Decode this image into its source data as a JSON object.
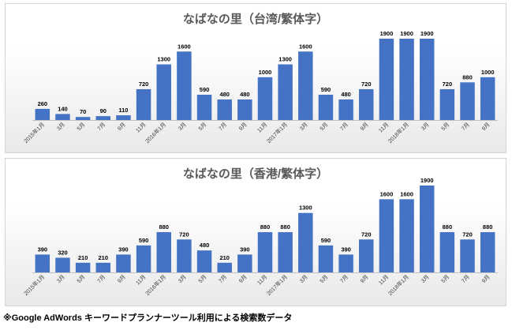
{
  "chart_data": [
    {
      "type": "bar",
      "title": "なばなの里（台湾/繁体字）",
      "categories": [
        "2015年1月",
        "3月",
        "5月",
        "7月",
        "9月",
        "11月",
        "2016年1月",
        "3月",
        "5月",
        "7月",
        "9月",
        "11月",
        "2017年1月",
        "3月",
        "5月",
        "7月",
        "9月",
        "11月",
        "2018年1月",
        "3月",
        "5月",
        "7月",
        "9月"
      ],
      "values": [
        260,
        140,
        70,
        90,
        110,
        720,
        1300,
        1600,
        590,
        480,
        480,
        1000,
        1300,
        1600,
        590,
        480,
        720,
        1900,
        1900,
        1900,
        720,
        880,
        1000
      ],
      "data_labels": true,
      "grid": false,
      "color": "#4472c4"
    },
    {
      "type": "bar",
      "title": "なばなの里（香港/繁体字）",
      "categories": [
        "2015年1月",
        "3月",
        "5月",
        "7月",
        "9月",
        "11月",
        "2016年1月",
        "3月",
        "5月",
        "7月",
        "9月",
        "11月",
        "2017年1月",
        "3月",
        "5月",
        "7月",
        "9月",
        "11月",
        "2018年1月",
        "3月",
        "5月",
        "7月",
        "9月"
      ],
      "values": [
        390,
        320,
        210,
        210,
        390,
        590,
        880,
        720,
        480,
        210,
        390,
        880,
        880,
        1300,
        590,
        390,
        720,
        1600,
        1600,
        1900,
        880,
        720,
        880
      ],
      "data_labels": true,
      "grid": false,
      "color": "#4472c4"
    }
  ],
  "footnote": "※Google AdWords キーワードプランナーツール利用による検索数データ"
}
